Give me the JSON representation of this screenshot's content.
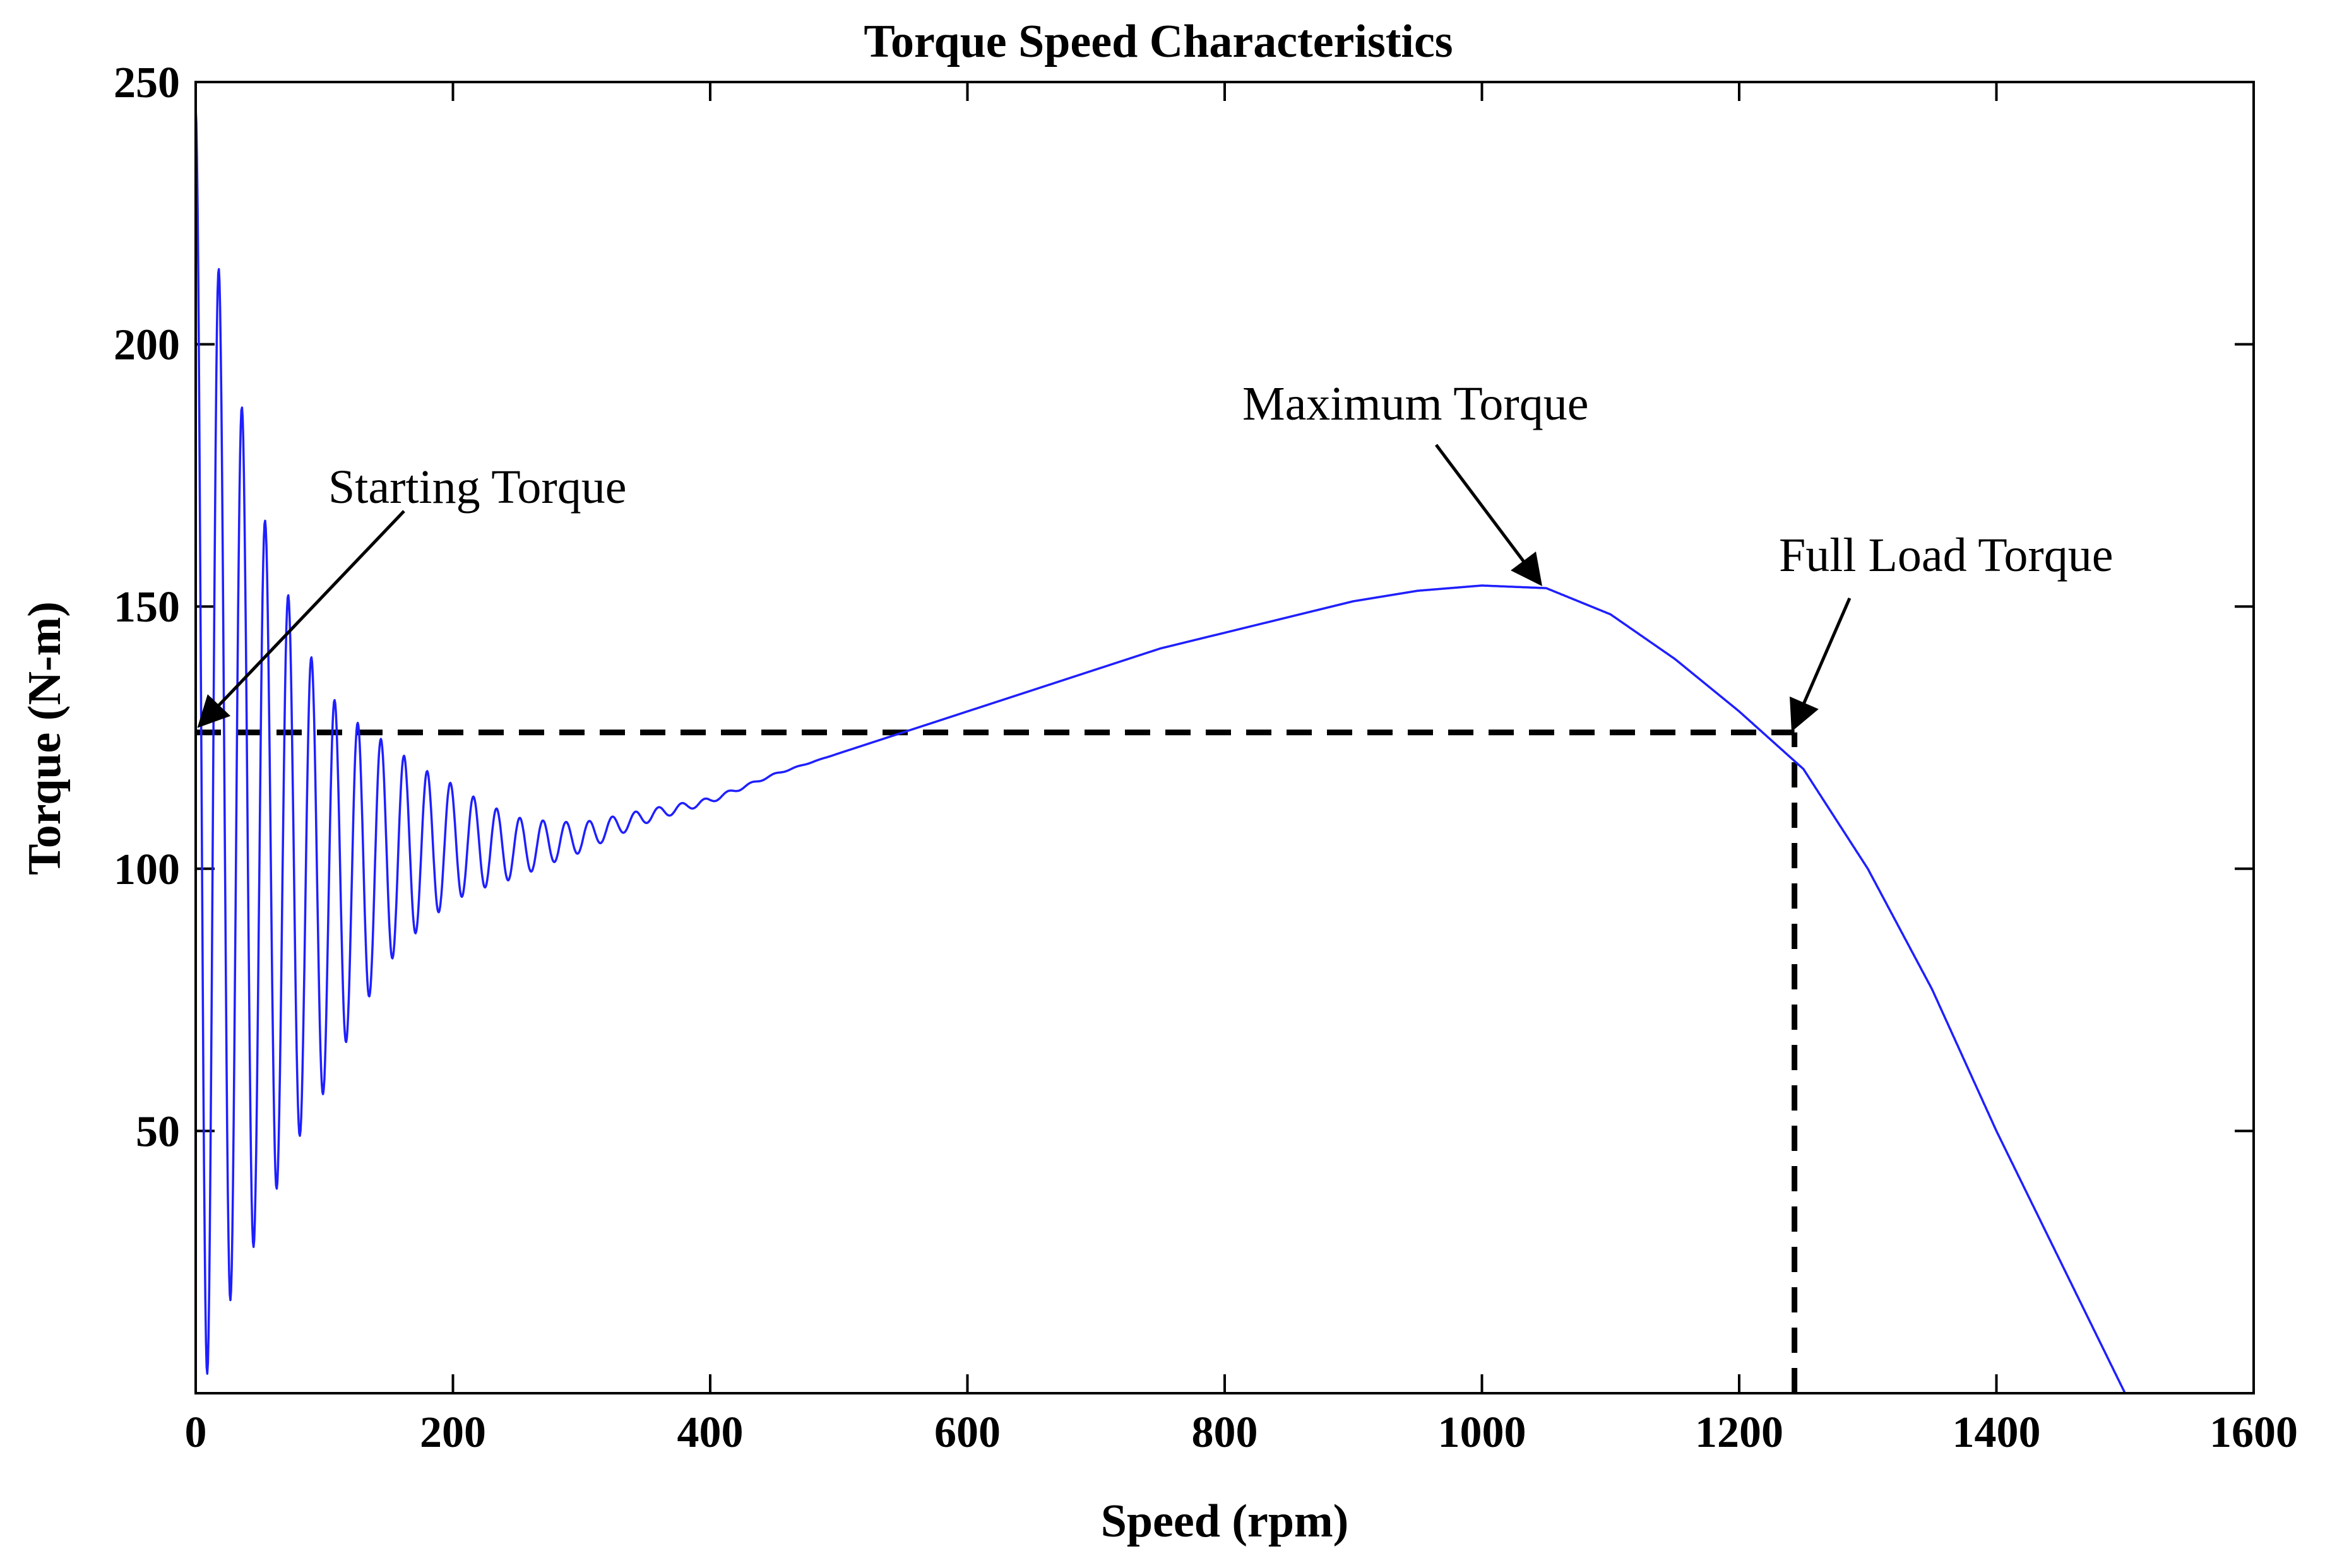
{
  "chart_data": {
    "type": "line",
    "title": "Torque Speed Characteristics",
    "xlabel": "Speed (rpm)",
    "ylabel": "Torque (N-m)",
    "xlim": [
      0,
      1600
    ],
    "ylim": [
      0,
      250
    ],
    "x_ticks": [
      0,
      200,
      400,
      600,
      800,
      1000,
      1200,
      1400,
      1600
    ],
    "y_ticks": [
      50,
      100,
      150,
      200,
      250
    ],
    "x_tick_labels": [
      "0",
      "200",
      "400",
      "600",
      "800",
      "1000",
      "1200",
      "1400",
      "1600"
    ],
    "y_tick_labels": [
      "50",
      "100",
      "150",
      "200",
      "250"
    ],
    "grid": false,
    "series": [
      {
        "name": "Torque",
        "color": "#1f1fff",
        "x": [
          0,
          50,
          100,
          150,
          200,
          250,
          300,
          350,
          400,
          450,
          500,
          550,
          600,
          650,
          700,
          750,
          800,
          850,
          900,
          950,
          1000,
          1050,
          1100,
          1150,
          1200,
          1250,
          1300,
          1350,
          1400,
          1450,
          1500
        ],
        "y": [
          120,
          100,
          96,
          103,
          105,
          104,
          106,
          110,
          113,
          118,
          122,
          126,
          130,
          134,
          138,
          142,
          145,
          148,
          151,
          153,
          154,
          153.5,
          148.5,
          140,
          130,
          119,
          100,
          77,
          50,
          25,
          0
        ],
        "oscillation_start_amplitude": 125,
        "oscillation_period_rpm": 18,
        "oscillation_decay_rpm": 105,
        "oscillation_fade_end_rpm": 500
      }
    ],
    "reference_lines": [
      {
        "name": "full-load-torque-level",
        "y": 126,
        "x_from": 0,
        "x_to": 1243,
        "style": "dashed",
        "color": "#000000"
      },
      {
        "name": "full-load-speed",
        "x": 1243,
        "y_from": 0,
        "y_to": 126,
        "style": "dashed",
        "color": "#000000"
      }
    ],
    "annotations": [
      {
        "name": "starting-torque",
        "text": "Starting Torque",
        "arrow_to": [
          0,
          126
        ]
      },
      {
        "name": "maximum-torque",
        "text": "Maximum Torque",
        "arrow_to": [
          1050,
          154
        ]
      },
      {
        "name": "full-load-torque",
        "text": "Full Load Torque",
        "arrow_to": [
          1243,
          126
        ]
      }
    ]
  }
}
